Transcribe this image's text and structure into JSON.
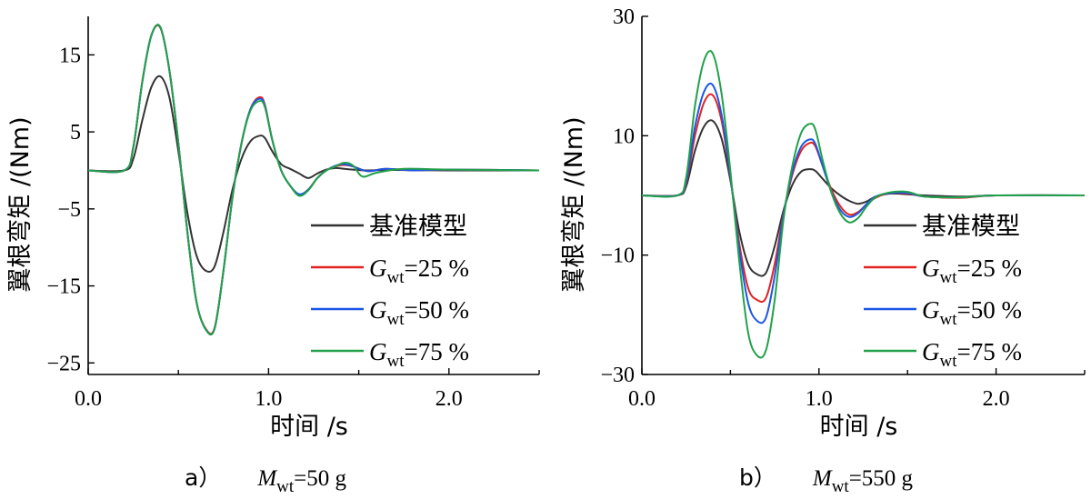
{
  "chart_data": [
    {
      "type": "line",
      "caption": {
        "prefix": "a）",
        "var": "M",
        "sub": "wt",
        "rest": "=50 g"
      },
      "xlabel": "时间 /s",
      "ylabel": "翼根弯矩 /(Nm)",
      "xlim": [
        0,
        2.5
      ],
      "ylim": [
        -26.5,
        20
      ],
      "xticks": [
        0.0,
        1.0,
        2.0
      ],
      "xtick_labels": [
        "0.0",
        "1.0",
        "2.0"
      ],
      "yticks": [
        15,
        5,
        -5,
        -15,
        -25
      ],
      "ytick_labels": [
        "15",
        "5",
        "−5",
        "−15",
        "−25"
      ],
      "grid": false,
      "legend_position": "bottom-right",
      "series": [
        {
          "name": "基准模型",
          "legend": {
            "plain": "基准模型"
          },
          "color": "#333333",
          "x": [
            0,
            0.2,
            0.25,
            0.3,
            0.35,
            0.4,
            0.45,
            0.5,
            0.55,
            0.6,
            0.65,
            0.7,
            0.75,
            0.8,
            0.85,
            0.9,
            0.95,
            0.98,
            1.02,
            1.07,
            1.12,
            1.17,
            1.22,
            1.27,
            1.32,
            1.37,
            1.42,
            1.47,
            1.55,
            1.7,
            2.0,
            2.5
          ],
          "y": [
            0,
            0,
            1.5,
            6.5,
            10.8,
            12.2,
            9.5,
            2.5,
            -5.5,
            -11.0,
            -13.0,
            -12.5,
            -8.0,
            -2.5,
            1.5,
            3.8,
            4.5,
            4.2,
            2.5,
            0.8,
            0.2,
            -0.4,
            -1.0,
            -0.4,
            0.1,
            0.3,
            0.2,
            0.1,
            0.0,
            0.05,
            0.0,
            0.0
          ]
        },
        {
          "name": "G_wt=25 %",
          "legend": {
            "var": "G",
            "sub": "wt",
            "rest": "=25 %"
          },
          "color": "#e32222",
          "x": [
            0,
            0.2,
            0.25,
            0.3,
            0.35,
            0.4,
            0.45,
            0.5,
            0.55,
            0.6,
            0.65,
            0.7,
            0.75,
            0.8,
            0.85,
            0.9,
            0.95,
            0.98,
            1.02,
            1.07,
            1.12,
            1.17,
            1.22,
            1.27,
            1.32,
            1.37,
            1.42,
            1.47,
            1.55,
            1.65,
            1.8,
            2.0,
            2.5
          ],
          "y": [
            0,
            0,
            3.0,
            11.5,
            17.5,
            18.5,
            13.0,
            3.5,
            -8.0,
            -17.0,
            -20.5,
            -20.5,
            -13.0,
            -3.5,
            3.5,
            8.0,
            9.5,
            8.5,
            4.0,
            0.0,
            -2.0,
            -3.2,
            -2.5,
            -1.0,
            0.0,
            0.5,
            0.7,
            0.5,
            -0.1,
            0.2,
            0.0,
            0.1,
            0.0
          ]
        },
        {
          "name": "G_wt=50 %",
          "legend": {
            "var": "G",
            "sub": "wt",
            "rest": "=50 %"
          },
          "color": "#1a56e6",
          "x": [
            0,
            0.2,
            0.25,
            0.3,
            0.35,
            0.4,
            0.45,
            0.5,
            0.55,
            0.6,
            0.65,
            0.7,
            0.75,
            0.8,
            0.85,
            0.9,
            0.95,
            0.98,
            1.02,
            1.07,
            1.12,
            1.17,
            1.22,
            1.27,
            1.32,
            1.37,
            1.42,
            1.47,
            1.55,
            1.65,
            1.8,
            2.0,
            2.5
          ],
          "y": [
            0,
            0,
            3.0,
            11.5,
            17.5,
            18.6,
            13.0,
            3.5,
            -8.0,
            -17.0,
            -20.6,
            -20.6,
            -13.0,
            -3.5,
            3.5,
            8.0,
            9.3,
            8.4,
            4.0,
            0.0,
            -2.0,
            -3.1,
            -2.5,
            -1.0,
            0.0,
            0.6,
            0.8,
            0.5,
            -0.1,
            0.2,
            0.0,
            0.1,
            0.0
          ]
        },
        {
          "name": "G_wt=75 %",
          "legend": {
            "var": "G",
            "sub": "wt",
            "rest": "=75 %"
          },
          "color": "#22a04a",
          "x": [
            0,
            0.2,
            0.25,
            0.3,
            0.35,
            0.4,
            0.45,
            0.5,
            0.55,
            0.6,
            0.65,
            0.7,
            0.75,
            0.8,
            0.85,
            0.9,
            0.95,
            0.98,
            1.02,
            1.07,
            1.12,
            1.17,
            1.22,
            1.27,
            1.32,
            1.37,
            1.42,
            1.47,
            1.52,
            1.6,
            1.75,
            2.0,
            2.5
          ],
          "y": [
            0,
            0,
            3.0,
            11.5,
            17.5,
            18.6,
            13.0,
            3.5,
            -8.0,
            -17.0,
            -20.6,
            -20.6,
            -13.0,
            -3.5,
            3.5,
            7.8,
            9.0,
            8.2,
            4.0,
            0.0,
            -2.0,
            -3.3,
            -2.6,
            -1.0,
            0.0,
            0.5,
            1.0,
            0.6,
            -0.8,
            -0.3,
            0.2,
            0.1,
            0.0
          ]
        }
      ]
    },
    {
      "type": "line",
      "caption": {
        "prefix": "b）",
        "var": "M",
        "sub": "wt",
        "rest": "=550 g"
      },
      "xlabel": "时间 /s",
      "ylabel": "翼根弯矩 /(Nm)",
      "xlim": [
        0,
        2.5
      ],
      "ylim": [
        -30,
        30
      ],
      "xticks": [
        0.0,
        1.0,
        2.0
      ],
      "xtick_labels": [
        "0.0",
        "1.0",
        "2.0"
      ],
      "yticks": [
        30,
        10,
        -10,
        -30
      ],
      "ytick_labels": [
        "30",
        "10",
        "−10",
        "−30"
      ],
      "grid": false,
      "legend_position": "bottom-right",
      "series": [
        {
          "name": "基准模型",
          "legend": {
            "plain": "基准模型"
          },
          "color": "#333333",
          "x": [
            0,
            0.2,
            0.25,
            0.3,
            0.35,
            0.4,
            0.45,
            0.5,
            0.55,
            0.6,
            0.65,
            0.7,
            0.75,
            0.8,
            0.85,
            0.9,
            0.95,
            0.98,
            1.02,
            1.07,
            1.12,
            1.17,
            1.22,
            1.27,
            1.32,
            1.4,
            1.5,
            1.6,
            1.8,
            2.0,
            2.5
          ],
          "y": [
            0,
            0,
            1.5,
            7.5,
            11.5,
            12.5,
            9.5,
            2.5,
            -6.0,
            -11.5,
            -13.2,
            -13.0,
            -8.5,
            -2.5,
            1.8,
            4.0,
            4.4,
            4.1,
            2.8,
            1.2,
            0.0,
            -0.9,
            -1.4,
            -1.0,
            -0.2,
            0.3,
            0.2,
            0.0,
            -0.2,
            0.0,
            0.0
          ]
        },
        {
          "name": "G_wt=25 %",
          "legend": {
            "var": "G",
            "sub": "wt",
            "rest": "=25 %"
          },
          "color": "#e32222",
          "x": [
            0,
            0.2,
            0.25,
            0.3,
            0.35,
            0.4,
            0.45,
            0.5,
            0.55,
            0.6,
            0.65,
            0.7,
            0.75,
            0.8,
            0.85,
            0.9,
            0.95,
            0.98,
            1.02,
            1.07,
            1.12,
            1.17,
            1.22,
            1.27,
            1.32,
            1.4,
            1.5,
            1.6,
            1.8,
            2.0,
            2.5
          ],
          "y": [
            0,
            0,
            2.0,
            10.0,
            15.5,
            16.8,
            12.5,
            3.0,
            -8.0,
            -15.5,
            -17.5,
            -17.2,
            -11.5,
            -3.0,
            3.5,
            7.5,
            8.8,
            8.2,
            5.0,
            1.0,
            -1.8,
            -3.2,
            -2.8,
            -1.5,
            -0.4,
            0.4,
            0.3,
            -0.2,
            -0.4,
            0.0,
            0.0
          ]
        },
        {
          "name": "G_wt=50 %",
          "legend": {
            "var": "G",
            "sub": "wt",
            "rest": "=50 %"
          },
          "color": "#1a56e6",
          "x": [
            0,
            0.2,
            0.25,
            0.3,
            0.35,
            0.4,
            0.45,
            0.5,
            0.55,
            0.6,
            0.65,
            0.7,
            0.75,
            0.8,
            0.85,
            0.9,
            0.95,
            0.98,
            1.02,
            1.07,
            1.12,
            1.17,
            1.22,
            1.27,
            1.32,
            1.4,
            1.5,
            1.6,
            1.8,
            2.0,
            2.5
          ],
          "y": [
            0,
            0,
            2.3,
            11.5,
            17.3,
            18.5,
            13.5,
            3.2,
            -9.0,
            -18.0,
            -21.0,
            -20.5,
            -13.5,
            -3.2,
            4.0,
            8.2,
            9.4,
            8.6,
            5.0,
            0.6,
            -2.4,
            -3.6,
            -3.0,
            -1.4,
            -0.2,
            0.4,
            0.4,
            -0.2,
            -0.3,
            0.0,
            0.0
          ]
        },
        {
          "name": "G_wt=75 %",
          "legend": {
            "var": "G",
            "sub": "wt",
            "rest": "=75 %"
          },
          "color": "#22a04a",
          "x": [
            0,
            0.2,
            0.25,
            0.3,
            0.35,
            0.4,
            0.45,
            0.5,
            0.55,
            0.6,
            0.65,
            0.7,
            0.75,
            0.8,
            0.85,
            0.9,
            0.95,
            0.98,
            1.02,
            1.07,
            1.12,
            1.17,
            1.22,
            1.27,
            1.32,
            1.4,
            1.5,
            1.6,
            1.8,
            2.0,
            2.5
          ],
          "y": [
            0,
            0,
            3.0,
            15.0,
            22.5,
            23.8,
            17.0,
            4.0,
            -11.0,
            -23.0,
            -26.8,
            -26.0,
            -17.5,
            -4.0,
            5.0,
            10.5,
            12.0,
            11.0,
            6.0,
            0.5,
            -3.0,
            -4.5,
            -3.8,
            -1.8,
            -0.3,
            0.5,
            0.6,
            -0.2,
            -0.3,
            0.0,
            0.0
          ]
        }
      ]
    }
  ]
}
